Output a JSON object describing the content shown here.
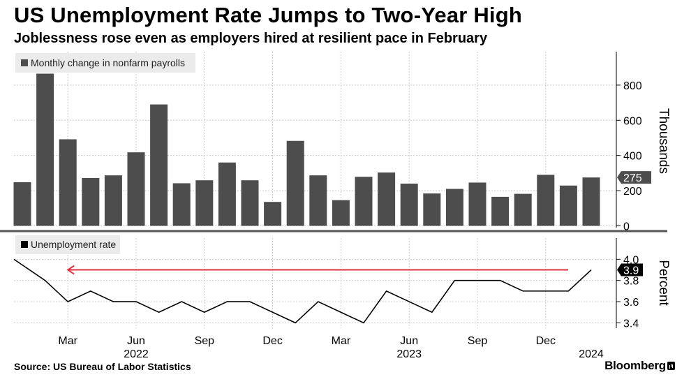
{
  "title": "US Unemployment Rate Jumps to Two-Year High",
  "subtitle": "Joblessness rose even as employers hired at resilient pace in February",
  "source": "Source: US Bureau of Labor Statistics",
  "brand": "Bloomberg",
  "brand_icon": "bloomberg-terminal-icon",
  "colors": {
    "bar": "#4d4d4d",
    "line": "#000000",
    "arrow": "#e0313f",
    "grid": "#cccccc"
  },
  "chart_data": [
    {
      "type": "bar",
      "legend": "Monthly change in nonfarm payrolls",
      "ylabel": "Thousands",
      "yticks": [
        0,
        200,
        400,
        600,
        800
      ],
      "ylim": [
        -10,
        990
      ],
      "callout": "275",
      "categories": [
        "2022-01",
        "2022-02",
        "2022-03",
        "2022-04",
        "2022-05",
        "2022-06",
        "2022-07",
        "2022-08",
        "2022-09",
        "2022-10",
        "2022-11",
        "2022-12",
        "2023-01",
        "2023-02",
        "2023-03",
        "2023-04",
        "2023-05",
        "2023-06",
        "2023-07",
        "2023-08",
        "2023-09",
        "2023-10",
        "2023-11",
        "2023-12",
        "2024-01",
        "2024-02"
      ],
      "values": [
        248,
        865,
        492,
        272,
        287,
        418,
        690,
        242,
        259,
        360,
        259,
        136,
        483,
        287,
        146,
        279,
        303,
        240,
        184,
        210,
        246,
        165,
        182,
        290,
        229,
        275
      ],
      "legend_position": "top-left",
      "grid": true
    },
    {
      "type": "line",
      "legend": "Unemployment rate",
      "ylabel": "Percent",
      "yticks": [
        3.4,
        3.6,
        3.8,
        4.0
      ],
      "ylim": [
        3.35,
        4.2
      ],
      "callout": "3.9",
      "x": [
        "2022-01",
        "2022-02",
        "2022-03",
        "2022-04",
        "2022-05",
        "2022-06",
        "2022-07",
        "2022-08",
        "2022-09",
        "2022-10",
        "2022-11",
        "2022-12",
        "2023-01",
        "2023-02",
        "2023-03",
        "2023-04",
        "2023-05",
        "2023-06",
        "2023-07",
        "2023-08",
        "2023-09",
        "2023-10",
        "2023-11",
        "2023-12",
        "2024-01",
        "2024-02"
      ],
      "values": [
        4.0,
        3.8,
        3.6,
        3.7,
        3.6,
        3.6,
        3.5,
        3.6,
        3.5,
        3.6,
        3.6,
        3.5,
        3.4,
        3.6,
        3.5,
        3.4,
        3.7,
        3.6,
        3.5,
        3.8,
        3.8,
        3.8,
        3.7,
        3.7,
        3.7,
        3.9
      ],
      "annotation": {
        "type": "arrow",
        "from": "2024-02",
        "to": "2022-03",
        "value": 3.9
      },
      "legend_position": "top-left",
      "grid": true
    }
  ],
  "x_axis": {
    "month_labels": [
      {
        "x": "2022-03",
        "label": "Mar"
      },
      {
        "x": "2022-06",
        "label": "Jun"
      },
      {
        "x": "2022-09",
        "label": "Sep"
      },
      {
        "x": "2022-12",
        "label": "Dec"
      },
      {
        "x": "2023-03",
        "label": "Mar"
      },
      {
        "x": "2023-06",
        "label": "Jun"
      },
      {
        "x": "2023-09",
        "label": "Sep"
      },
      {
        "x": "2023-12",
        "label": "Dec"
      }
    ],
    "year_labels": [
      {
        "x": "2022-06",
        "label": "2022"
      },
      {
        "x": "2023-06",
        "label": "2023"
      },
      {
        "x": "2024-02",
        "label": "2024"
      }
    ]
  }
}
